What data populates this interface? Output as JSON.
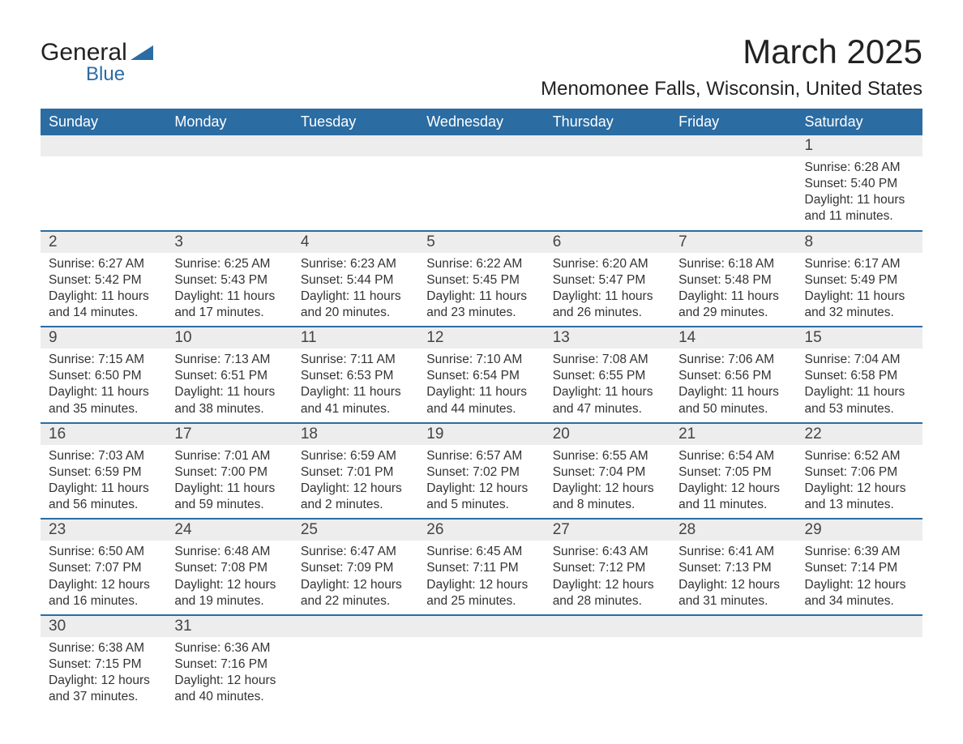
{
  "logo": {
    "text1": "General",
    "text2": "Blue"
  },
  "title": "March 2025",
  "location": "Menomonee Falls, Wisconsin, United States",
  "colors": {
    "header_bg": "#2b6ca3",
    "header_text": "#ffffff",
    "daynum_bg": "#ededed",
    "row_border": "#2b6ca3",
    "body_text": "#333333",
    "page_bg": "#ffffff"
  },
  "typography": {
    "title_fontsize": 42,
    "location_fontsize": 24,
    "header_fontsize": 18,
    "daynum_fontsize": 19,
    "body_fontsize": 15.5
  },
  "weekdays": [
    "Sunday",
    "Monday",
    "Tuesday",
    "Wednesday",
    "Thursday",
    "Friday",
    "Saturday"
  ],
  "weeks": [
    [
      null,
      null,
      null,
      null,
      null,
      null,
      {
        "n": "1",
        "sr": "6:28 AM",
        "ss": "5:40 PM",
        "dl": "11 hours and 11 minutes."
      }
    ],
    [
      {
        "n": "2",
        "sr": "6:27 AM",
        "ss": "5:42 PM",
        "dl": "11 hours and 14 minutes."
      },
      {
        "n": "3",
        "sr": "6:25 AM",
        "ss": "5:43 PM",
        "dl": "11 hours and 17 minutes."
      },
      {
        "n": "4",
        "sr": "6:23 AM",
        "ss": "5:44 PM",
        "dl": "11 hours and 20 minutes."
      },
      {
        "n": "5",
        "sr": "6:22 AM",
        "ss": "5:45 PM",
        "dl": "11 hours and 23 minutes."
      },
      {
        "n": "6",
        "sr": "6:20 AM",
        "ss": "5:47 PM",
        "dl": "11 hours and 26 minutes."
      },
      {
        "n": "7",
        "sr": "6:18 AM",
        "ss": "5:48 PM",
        "dl": "11 hours and 29 minutes."
      },
      {
        "n": "8",
        "sr": "6:17 AM",
        "ss": "5:49 PM",
        "dl": "11 hours and 32 minutes."
      }
    ],
    [
      {
        "n": "9",
        "sr": "7:15 AM",
        "ss": "6:50 PM",
        "dl": "11 hours and 35 minutes."
      },
      {
        "n": "10",
        "sr": "7:13 AM",
        "ss": "6:51 PM",
        "dl": "11 hours and 38 minutes."
      },
      {
        "n": "11",
        "sr": "7:11 AM",
        "ss": "6:53 PM",
        "dl": "11 hours and 41 minutes."
      },
      {
        "n": "12",
        "sr": "7:10 AM",
        "ss": "6:54 PM",
        "dl": "11 hours and 44 minutes."
      },
      {
        "n": "13",
        "sr": "7:08 AM",
        "ss": "6:55 PM",
        "dl": "11 hours and 47 minutes."
      },
      {
        "n": "14",
        "sr": "7:06 AM",
        "ss": "6:56 PM",
        "dl": "11 hours and 50 minutes."
      },
      {
        "n": "15",
        "sr": "7:04 AM",
        "ss": "6:58 PM",
        "dl": "11 hours and 53 minutes."
      }
    ],
    [
      {
        "n": "16",
        "sr": "7:03 AM",
        "ss": "6:59 PM",
        "dl": "11 hours and 56 minutes."
      },
      {
        "n": "17",
        "sr": "7:01 AM",
        "ss": "7:00 PM",
        "dl": "11 hours and 59 minutes."
      },
      {
        "n": "18",
        "sr": "6:59 AM",
        "ss": "7:01 PM",
        "dl": "12 hours and 2 minutes."
      },
      {
        "n": "19",
        "sr": "6:57 AM",
        "ss": "7:02 PM",
        "dl": "12 hours and 5 minutes."
      },
      {
        "n": "20",
        "sr": "6:55 AM",
        "ss": "7:04 PM",
        "dl": "12 hours and 8 minutes."
      },
      {
        "n": "21",
        "sr": "6:54 AM",
        "ss": "7:05 PM",
        "dl": "12 hours and 11 minutes."
      },
      {
        "n": "22",
        "sr": "6:52 AM",
        "ss": "7:06 PM",
        "dl": "12 hours and 13 minutes."
      }
    ],
    [
      {
        "n": "23",
        "sr": "6:50 AM",
        "ss": "7:07 PM",
        "dl": "12 hours and 16 minutes."
      },
      {
        "n": "24",
        "sr": "6:48 AM",
        "ss": "7:08 PM",
        "dl": "12 hours and 19 minutes."
      },
      {
        "n": "25",
        "sr": "6:47 AM",
        "ss": "7:09 PM",
        "dl": "12 hours and 22 minutes."
      },
      {
        "n": "26",
        "sr": "6:45 AM",
        "ss": "7:11 PM",
        "dl": "12 hours and 25 minutes."
      },
      {
        "n": "27",
        "sr": "6:43 AM",
        "ss": "7:12 PM",
        "dl": "12 hours and 28 minutes."
      },
      {
        "n": "28",
        "sr": "6:41 AM",
        "ss": "7:13 PM",
        "dl": "12 hours and 31 minutes."
      },
      {
        "n": "29",
        "sr": "6:39 AM",
        "ss": "7:14 PM",
        "dl": "12 hours and 34 minutes."
      }
    ],
    [
      {
        "n": "30",
        "sr": "6:38 AM",
        "ss": "7:15 PM",
        "dl": "12 hours and 37 minutes."
      },
      {
        "n": "31",
        "sr": "6:36 AM",
        "ss": "7:16 PM",
        "dl": "12 hours and 40 minutes."
      },
      null,
      null,
      null,
      null,
      null
    ]
  ],
  "labels": {
    "sunrise": "Sunrise:",
    "sunset": "Sunset:",
    "daylight": "Daylight:"
  }
}
